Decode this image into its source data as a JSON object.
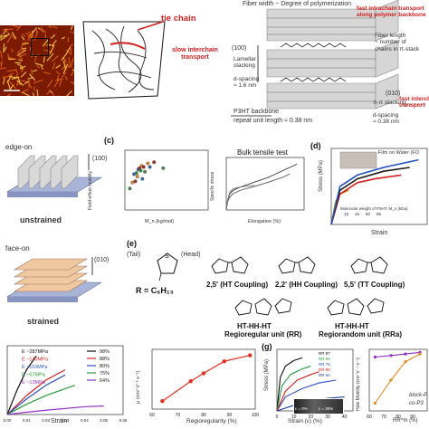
{
  "colors": {
    "accent_red": "#d42020",
    "afm_dark": "#7a1a00",
    "afm_mid": "#d85a10",
    "afm_light": "#f2c040",
    "slab_gray": "#cfcfcf",
    "substrate_blue": "#a9b4d8"
  },
  "panel_a": {
    "tie_chain": "tie chain",
    "slow_interchain": "slow interchain\ntransport",
    "fiber_width": "Fiber width ~ Degree of polymerization",
    "fast_intrachain": "fast intrachain transport\nalong polymer backbone",
    "fiber_length": "Fiber length\n~ number of\nchains in π-stack",
    "lamellar_index": "(100)",
    "lamellar": "Lamellar\nstacking",
    "dspacing_1": "d-spacing\n≈ 1.6 nm",
    "pi_index": "(010)",
    "pi_stacking": "π-π stacking",
    "fast_interchain": "fast interchain\ntransport",
    "dspacing_2": "d-spacing\n≈ 0.38 nm",
    "backbone": "P3HT backbone",
    "repeat": "repeat unit length ≈ 0.38 nm"
  },
  "panel_b": {
    "edge_on": "edge-on",
    "edge_index": "(100)",
    "unstrained": "unstrained",
    "face_on": "face-on",
    "face_index": "(010)",
    "strained": "strained"
  },
  "panel_c": {
    "letter": "(c)",
    "xlabel": "M_n (kg/mol)",
    "ylabel": "Field-effect mobility",
    "bulk_title": "Bulk tensile test",
    "bulk_xlabel": "Elongation (%)",
    "bulk_ylabel": "Specific stress"
  },
  "panel_d": {
    "letter": "(d)",
    "film_label": "Film on Water (FO",
    "ylabel": "Stress (MPa)",
    "xlabel": "Strain",
    "legend_title": "Molecular weight of P3HT, M_n (kDa)",
    "legend_values": [
      "18",
      "46",
      "60",
      "85"
    ]
  },
  "panel_e": {
    "letter": "(e)",
    "tail": "(Tail)",
    "head": "(Head)",
    "r_def": "R = C₆H₁₃",
    "ht": "2,5' (HT Coupling)",
    "hh": "2,2' (HH Coupling)",
    "tt": "5,5' (TT Coupling)",
    "rr_title": "HT-HH-HT",
    "rr_name": "Regioregular unit (RR)",
    "rra_title": "HT-HH-HT",
    "rra_name": "Regiorandom unit (RRa)"
  },
  "panel_f": {
    "xlabel": "Strain",
    "modulus_labels": [
      "E ~287MPa",
      "E ~130MPa",
      "E ~110MPa",
      "E ~67MPa",
      "E ~13MPa"
    ],
    "legend": [
      "98%",
      "88%",
      "80%",
      "75%",
      "64%"
    ],
    "x_ticks": [
      "0.00",
      "0.01",
      "0.02",
      "0.03",
      "0.04",
      "0.05",
      "0.06"
    ]
  },
  "panel_f2": {
    "xlabel": "Regioregularity (%)",
    "ylabel": "μ (cm² V⁻¹ s⁻¹)",
    "x_ticks": [
      "60",
      "70",
      "80",
      "90",
      "100"
    ]
  },
  "panel_g": {
    "letter": "(g)",
    "ylabel": "Stress (MPa)",
    "xlabel": "Strain (ε) (%)",
    "legend": [
      "RR 97",
      "RR 94",
      "RR 76",
      "RR 89",
      "RR 64"
    ],
    "inset_eps0": "ε = 0%",
    "inset_eps1": "ε = 35%",
    "x_ticks": [
      "0",
      "10",
      "20",
      "30",
      "40"
    ]
  },
  "panel_h": {
    "ylabel": "Hole Mobility (cm² V⁻¹ s⁻¹)",
    "xlabel": "RR^m (%)",
    "legend": [
      "block-P",
      "co-P3"
    ],
    "x_ticks": [
      "60",
      "70",
      "80",
      "90"
    ]
  },
  "chart_data": [
    {
      "type": "scatter",
      "title": "",
      "xlabel": "M_n (kg/mol)",
      "ylabel": "Field-effect mobility",
      "xlim": [
        0,
        200
      ],
      "ylim": [
        -5,
        0
      ],
      "series": [
        {
          "x": [
            12,
            18,
            22,
            25,
            28,
            30,
            32,
            35,
            38,
            40,
            42,
            45,
            48,
            55,
            60,
            70,
            92
          ],
          "y": [
            -3.2,
            -2.7,
            -2.0,
            -2.6,
            -1.9,
            -2.2,
            -1.6,
            -1.5,
            -1.7,
            -1.3,
            -2.4,
            -1.4,
            -1.8,
            -1.1,
            -1.4,
            -1.0,
            -1.5
          ]
        }
      ]
    },
    {
      "type": "line",
      "title": "Bulk tensile test",
      "xlabel": "Elongation (%)",
      "ylabel": "Specific stress",
      "series": [
        {
          "x": [
            0,
            2,
            5,
            10,
            20,
            40,
            60,
            80,
            100
          ],
          "y": [
            0,
            3,
            5,
            6,
            7,
            8.5,
            10,
            12,
            14
          ]
        },
        {
          "x": [
            0,
            2,
            5,
            10,
            20,
            40,
            60,
            80,
            90
          ],
          "y": [
            0,
            2.5,
            4,
            5,
            6,
            7.2,
            8.5,
            10,
            11
          ]
        },
        {
          "x": [
            0,
            2,
            5,
            10,
            20,
            30,
            40
          ],
          "y": [
            0,
            3,
            5.5,
            6.5,
            7,
            7.3,
            7.5
          ]
        }
      ]
    },
    {
      "type": "line",
      "title": "",
      "xlabel": "Strain",
      "ylabel": "Stress (MPa)",
      "series": [
        {
          "name": "18",
          "x": [
            0,
            0.05,
            0.1,
            0.2
          ],
          "y": [
            0,
            6,
            8,
            9
          ]
        },
        {
          "name": "46",
          "x": [
            0,
            0.1,
            0.3,
            0.5,
            0.8
          ],
          "y": [
            0,
            8,
            11,
            12,
            13
          ]
        },
        {
          "name": "60",
          "x": [
            0,
            0.1,
            0.3,
            0.6,
            0.9
          ],
          "y": [
            0,
            9,
            12,
            14,
            15
          ]
        },
        {
          "name": "85",
          "x": [
            0,
            0.1,
            0.3,
            0.6,
            1.0
          ],
          "y": [
            0,
            10,
            13,
            15,
            17
          ]
        }
      ]
    },
    {
      "type": "line",
      "title": "",
      "xlabel": "Strain",
      "ylabel": "",
      "xlim": [
        0,
        0.06
      ],
      "series": [
        {
          "name": "98%",
          "x": [
            0,
            0.005,
            0.01,
            0.015
          ],
          "y": [
            0,
            1.4,
            2.6,
            3.4
          ]
        },
        {
          "name": "88%",
          "x": [
            0,
            0.01,
            0.02,
            0.03
          ],
          "y": [
            0,
            1.1,
            2.0,
            2.6
          ]
        },
        {
          "name": "80%",
          "x": [
            0,
            0.01,
            0.02,
            0.03
          ],
          "y": [
            0,
            0.9,
            1.7,
            2.3
          ]
        },
        {
          "name": "75%",
          "x": [
            0,
            0.01,
            0.02,
            0.035
          ],
          "y": [
            0,
            0.6,
            1.1,
            1.7
          ]
        },
        {
          "name": "64%",
          "x": [
            0,
            0.01,
            0.02,
            0.04,
            0.05
          ],
          "y": [
            0,
            0.13,
            0.25,
            0.45,
            0.5
          ]
        }
      ]
    },
    {
      "type": "line",
      "title": "",
      "xlabel": "Regioregularity (%)",
      "ylabel": "μ (cm² V⁻¹ s⁻¹)",
      "xlim": [
        60,
        100
      ],
      "series": [
        {
          "x": [
            64,
            75,
            80,
            88,
            98
          ],
          "y": [
            -4.6,
            -3.6,
            -3.2,
            -2.6,
            -2.3
          ]
        }
      ]
    },
    {
      "type": "line",
      "title": "",
      "xlabel": "Strain (ε) (%)",
      "ylabel": "Stress (MPa)",
      "xlim": [
        0,
        45
      ],
      "series": [
        {
          "name": "RR 97",
          "x": [
            0,
            2,
            5,
            10,
            15
          ],
          "y": [
            0,
            12,
            16,
            18,
            19
          ]
        },
        {
          "name": "RR 94",
          "x": [
            0,
            3,
            8,
            15,
            20
          ],
          "y": [
            0,
            9,
            13,
            15,
            16
          ]
        },
        {
          "name": "RR 76",
          "x": [
            0,
            5,
            15,
            25,
            35
          ],
          "y": [
            0,
            5,
            8,
            10,
            11
          ]
        },
        {
          "name": "RR 89",
          "x": [
            0,
            5,
            12,
            20,
            25
          ],
          "y": [
            0,
            7,
            11,
            13,
            14
          ]
        },
        {
          "name": "RR 64",
          "x": [
            0,
            10,
            20,
            30,
            40
          ],
          "y": [
            0,
            2,
            3.5,
            4.5,
            5
          ]
        }
      ]
    },
    {
      "type": "line",
      "title": "",
      "xlabel": "RR^m (%)",
      "ylabel": "Hole Mobility (cm² V⁻¹ s⁻¹)",
      "series": [
        {
          "name": "block-P",
          "x": [
            64,
            75,
            85,
            95
          ],
          "y": [
            -1.5,
            -1.4,
            -1.3,
            -1.2
          ]
        },
        {
          "name": "co-P3",
          "x": [
            64,
            75,
            85,
            95
          ],
          "y": [
            -4.5,
            -3.0,
            -1.8,
            -1.3
          ]
        }
      ]
    }
  ]
}
